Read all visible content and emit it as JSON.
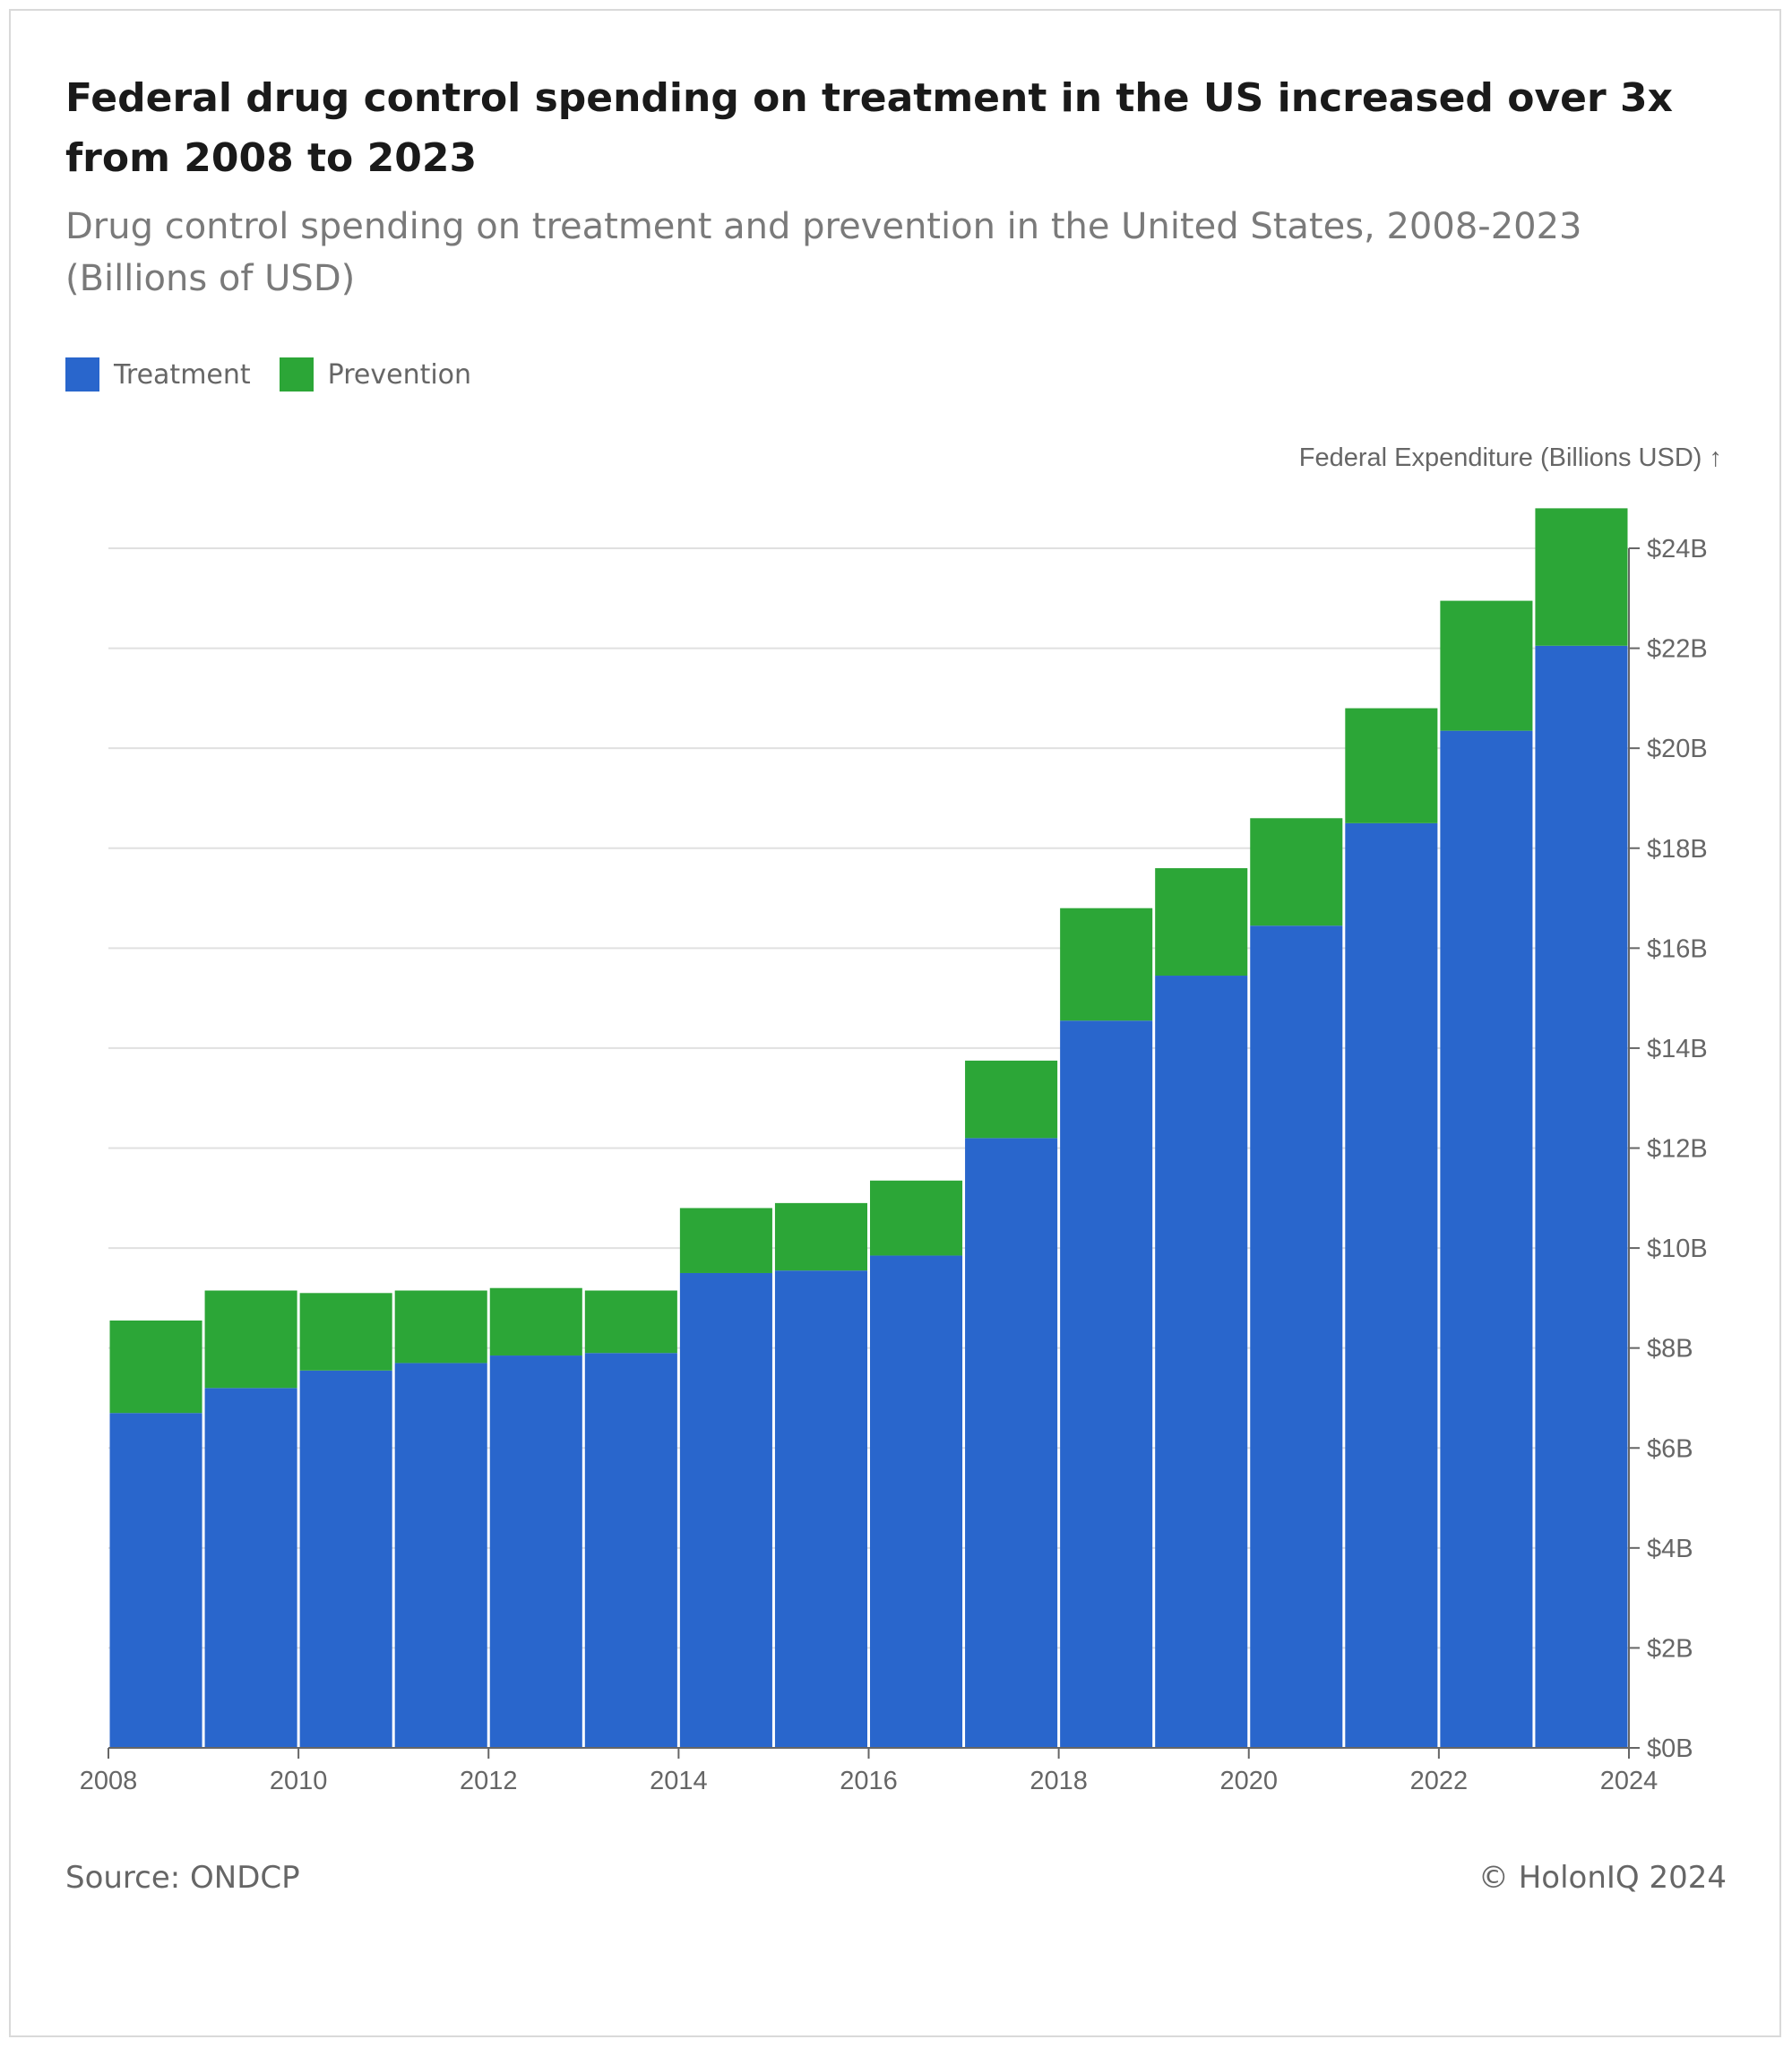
{
  "title": "Federal drug control spending on treatment in the US increased over 3x from 2008 to 2023",
  "subtitle": "Drug control spending on treatment and prevention in the United States, 2008-2023 (Billions of USD)",
  "footer": {
    "source": "Source: ONDCP",
    "copyright": "© HolonIQ 2024"
  },
  "colors": {
    "treatment": "#2966cc",
    "prevention": "#2ca637",
    "grid": "#e0e0e0",
    "axis": "#666666"
  },
  "chart_data": {
    "type": "bar",
    "stacked": true,
    "categories": [
      2008,
      2009,
      2010,
      2011,
      2012,
      2013,
      2014,
      2015,
      2016,
      2017,
      2018,
      2019,
      2020,
      2021,
      2022,
      2023
    ],
    "series": [
      {
        "name": "Treatment",
        "color": "#2966cc",
        "values": [
          6.7,
          7.2,
          7.55,
          7.7,
          7.85,
          7.9,
          9.5,
          9.55,
          9.85,
          12.2,
          14.55,
          15.45,
          16.45,
          18.5,
          20.35,
          22.05
        ]
      },
      {
        "name": "Prevention",
        "color": "#2ca637",
        "values": [
          1.85,
          1.95,
          1.55,
          1.45,
          1.35,
          1.25,
          1.3,
          1.35,
          1.5,
          1.55,
          2.25,
          2.15,
          2.15,
          2.3,
          2.6,
          2.75
        ]
      }
    ],
    "ylabel": "Federal Expenditure (Billions USD) ↑",
    "xlim": [
      2008,
      2024
    ],
    "ylim": [
      0,
      24
    ],
    "x_ticks": [
      2008,
      2010,
      2012,
      2014,
      2016,
      2018,
      2020,
      2022,
      2024
    ],
    "y_ticks": [
      0,
      2,
      4,
      6,
      8,
      10,
      12,
      14,
      16,
      18,
      20,
      22,
      24
    ],
    "y_tick_labels": [
      "$0B",
      "$2B",
      "$4B",
      "$6B",
      "$8B",
      "$10B",
      "$12B",
      "$14B",
      "$16B",
      "$18B",
      "$20B",
      "$22B",
      "$24B"
    ],
    "y_axis_position": "right",
    "grid": true,
    "legend_position": "top-left"
  }
}
